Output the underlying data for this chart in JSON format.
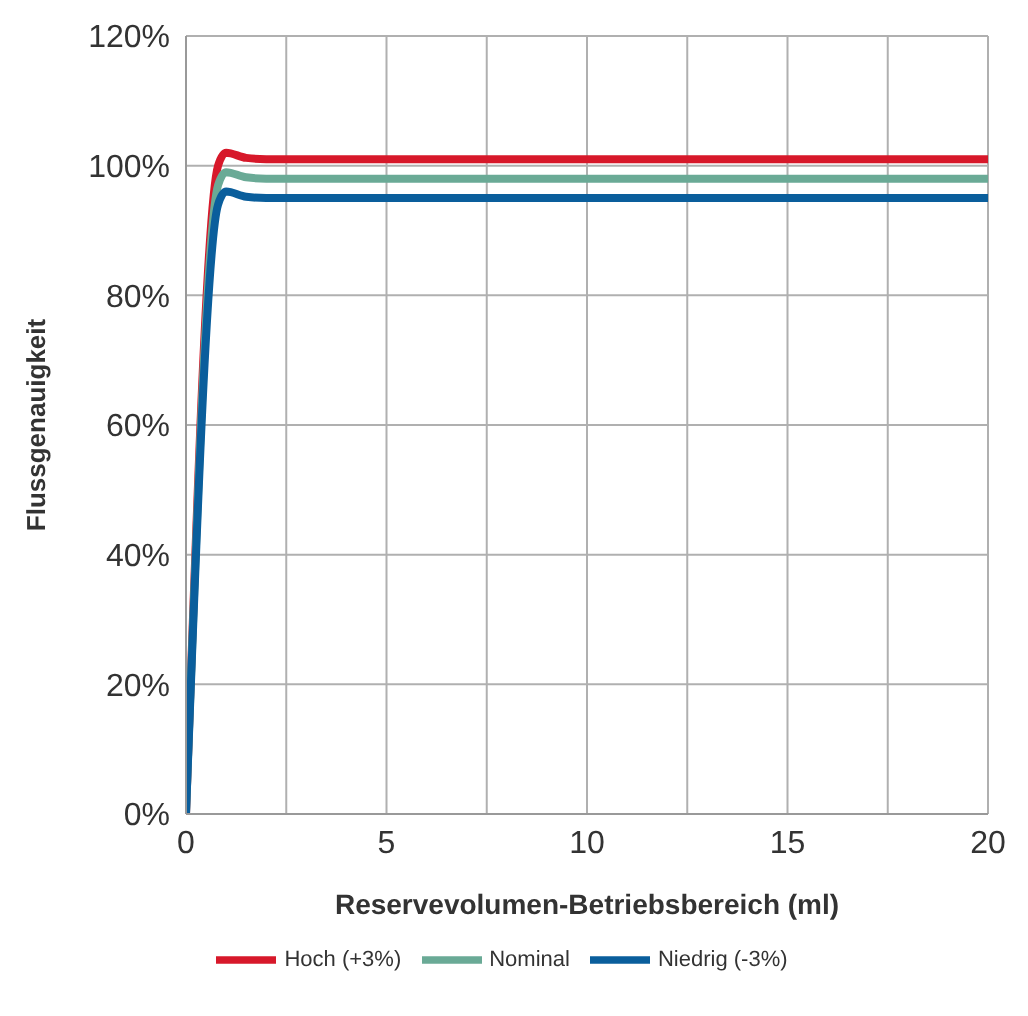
{
  "chart_data": {
    "type": "line",
    "xlabel": "Reservevolumen-Betriebsbereich (ml)",
    "ylabel": "Flussgenauigkeit",
    "xlim": [
      0,
      20
    ],
    "xticks": [
      0,
      {
        "value": 2.5,
        "label": null
      },
      5,
      {
        "value": 7.5,
        "label": null
      },
      10,
      {
        "value": 12.5,
        "label": null
      },
      15,
      {
        "value": 17.5,
        "label": null
      },
      20
    ],
    "ylim": [
      0,
      120
    ],
    "yticks": [
      {
        "value": 0,
        "label": "0%"
      },
      {
        "value": 20,
        "label": "20%"
      },
      {
        "value": 40,
        "label": "40%"
      },
      {
        "value": 60,
        "label": "60%"
      },
      {
        "value": 80,
        "label": "80%"
      },
      {
        "value": 100,
        "label": "100%"
      },
      {
        "value": 120,
        "label": "120%"
      }
    ],
    "grid": true,
    "legend": "bottom",
    "marker": "none",
    "line_style": "solid",
    "series": [
      {
        "name": "Hoch (+3%)",
        "color": "#d7182a",
        "x": [
          0,
          0.8,
          1.0,
          1.5,
          2,
          20
        ],
        "values": [
          0,
          100,
          102,
          101.2,
          101,
          101
        ]
      },
      {
        "name": "Nominal",
        "color": "#6aaa96",
        "x": [
          0,
          0.8,
          1.0,
          1.5,
          2,
          20
        ],
        "values": [
          0,
          97,
          99,
          98.2,
          98,
          98
        ]
      },
      {
        "name": "Niedrig (-3%)",
        "color": "#0a5e9c",
        "x": [
          0,
          0.8,
          1.0,
          1.5,
          2,
          20
        ],
        "values": [
          0,
          94,
          96,
          95.2,
          95,
          95
        ]
      }
    ]
  }
}
